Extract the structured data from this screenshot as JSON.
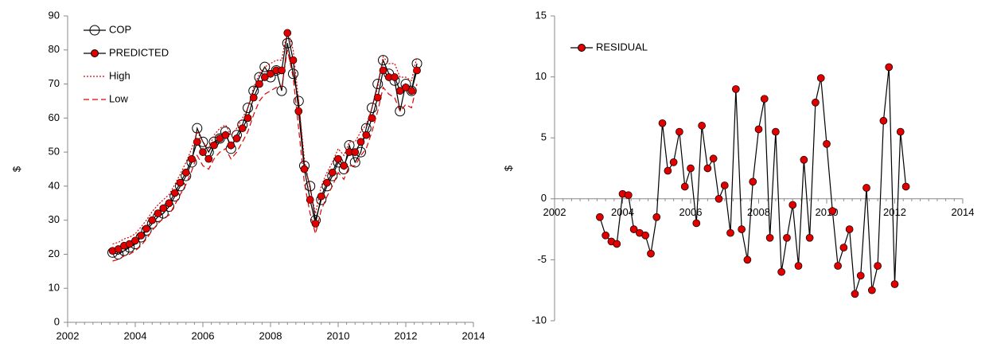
{
  "chart_data": [
    {
      "type": "line",
      "y_label": "$",
      "x": [
        2003.33,
        2003.5,
        2003.67,
        2003.83,
        2004,
        2004.17,
        2004.33,
        2004.5,
        2004.67,
        2004.83,
        2005,
        2005.17,
        2005.33,
        2005.5,
        2005.67,
        2005.83,
        2006,
        2006.17,
        2006.33,
        2006.5,
        2006.67,
        2006.83,
        2007,
        2007.17,
        2007.33,
        2007.5,
        2007.67,
        2007.83,
        2008,
        2008.17,
        2008.33,
        2008.5,
        2008.67,
        2008.83,
        2009,
        2009.17,
        2009.33,
        2009.5,
        2009.67,
        2009.83,
        2010,
        2010.17,
        2010.33,
        2010.5,
        2010.67,
        2010.83,
        2011,
        2011.17,
        2011.33,
        2011.5,
        2011.67,
        2011.83,
        2012,
        2012.17,
        2012.33
      ],
      "series": [
        {
          "name": "COP",
          "color": "#000000",
          "line_color": "#000000",
          "marker": "open-circle",
          "line": "solid",
          "values": [
            20.5,
            20,
            21,
            22,
            23,
            25,
            27,
            29,
            31,
            32,
            34,
            37,
            40,
            43,
            47,
            57,
            53,
            50,
            53,
            54,
            56,
            51,
            55,
            58,
            63,
            68,
            72,
            75,
            72,
            74,
            68,
            82,
            73,
            65,
            46,
            40,
            30,
            36,
            40,
            43,
            47,
            45,
            52,
            47,
            50,
            57,
            63,
            70,
            77,
            73,
            71,
            62,
            70,
            68,
            76
          ]
        },
        {
          "name": "PREDICTED",
          "color": "#e00000",
          "line_color": "#000000",
          "marker": "dot",
          "line": "solid",
          "values": [
            21,
            21.5,
            22.5,
            23,
            24,
            25.5,
            27.5,
            30,
            32,
            33.5,
            35,
            38,
            41,
            44,
            48,
            53,
            50,
            48,
            52,
            54,
            55,
            52,
            54,
            57,
            60,
            66,
            70,
            72,
            73,
            74,
            74,
            85,
            77,
            62,
            45,
            36,
            29,
            37,
            41,
            44,
            48,
            46,
            50,
            50,
            53,
            55,
            60,
            66,
            74,
            72,
            72,
            68,
            69,
            68,
            74
          ]
        },
        {
          "name": "High",
          "color": "#e00000",
          "line_color": "#e00000",
          "marker": "none",
          "line": "dotted",
          "values": [
            23,
            23.5,
            24.5,
            25,
            26,
            28,
            30,
            32.5,
            34.5,
            36,
            37.5,
            40.5,
            43.5,
            47,
            51,
            56,
            53,
            51,
            55,
            57,
            58,
            55,
            57,
            60,
            63,
            69,
            73,
            75,
            76,
            77,
            77,
            86,
            80,
            65,
            48,
            39,
            32,
            40,
            44,
            47,
            51,
            49,
            53,
            53,
            56,
            58,
            63,
            69,
            78,
            76,
            76,
            72,
            72,
            71,
            78
          ]
        },
        {
          "name": "Low",
          "color": "#e00000",
          "line_color": "#e00000",
          "marker": "none",
          "line": "dashed",
          "values": [
            18,
            18.5,
            19.5,
            20,
            21,
            22.5,
            24.5,
            27,
            29,
            30.5,
            31.5,
            34.5,
            37.5,
            40.5,
            44.5,
            49,
            46,
            45,
            48,
            50,
            51,
            48,
            50,
            53,
            56,
            61,
            65,
            67,
            68,
            69,
            69,
            80,
            72,
            57,
            41,
            32,
            26,
            33,
            37,
            40,
            44,
            42,
            46,
            46,
            49,
            51,
            56,
            62,
            69,
            67,
            66,
            62,
            64,
            63,
            70
          ]
        }
      ],
      "xlim": [
        2002,
        2014
      ],
      "xticks": [
        2002,
        2004,
        2006,
        2008,
        2010,
        2012,
        2014
      ],
      "ylim": [
        0,
        90
      ],
      "yticks": [
        0,
        10,
        20,
        30,
        40,
        50,
        60,
        70,
        80,
        90
      ],
      "legend": "upper left"
    },
    {
      "type": "line",
      "y_label": "$",
      "x": [
        2003.33,
        2003.5,
        2003.67,
        2003.83,
        2004,
        2004.17,
        2004.33,
        2004.5,
        2004.67,
        2004.83,
        2005,
        2005.17,
        2005.33,
        2005.5,
        2005.67,
        2005.83,
        2006,
        2006.17,
        2006.33,
        2006.5,
        2006.67,
        2006.83,
        2007,
        2007.17,
        2007.33,
        2007.5,
        2007.67,
        2007.83,
        2008,
        2008.17,
        2008.33,
        2008.5,
        2008.67,
        2008.83,
        2009,
        2009.17,
        2009.33,
        2009.5,
        2009.67,
        2009.83,
        2010,
        2010.17,
        2010.33,
        2010.5,
        2010.67,
        2010.83,
        2011,
        2011.17,
        2011.33,
        2011.5,
        2011.67,
        2011.83,
        2012,
        2012.17,
        2012.33
      ],
      "series": [
        {
          "name": "RESIDUAL",
          "color": "#e00000",
          "line_color": "#000000",
          "marker": "dot",
          "line": "solid",
          "values": [
            -1.5,
            -3,
            -3.5,
            -3.7,
            0.4,
            0.3,
            -2.5,
            -2.8,
            -3,
            -4.5,
            -1.5,
            6.2,
            2.3,
            3,
            5.5,
            1,
            2.5,
            -2,
            6,
            2.5,
            3.3,
            0,
            1.1,
            -2.8,
            9,
            -2.5,
            -5,
            1.4,
            5.7,
            8.2,
            -3.2,
            5.5,
            -6,
            -3.2,
            -0.5,
            -5.5,
            3.2,
            -3.2,
            7.9,
            9.9,
            4.5,
            -1,
            -5.5,
            -4,
            -2.5,
            -7.8,
            -6.3,
            0.9,
            -7.5,
            -5.5,
            6.4,
            10.8,
            -7,
            5.5,
            1
          ]
        }
      ],
      "xlim": [
        2002,
        2014
      ],
      "xticks": [
        2002,
        2004,
        2006,
        2008,
        2010,
        2012,
        2014
      ],
      "ylim": [
        -10,
        15
      ],
      "yticks": [
        -10,
        -5,
        0,
        5,
        10,
        15
      ],
      "legend": "upper left"
    }
  ]
}
